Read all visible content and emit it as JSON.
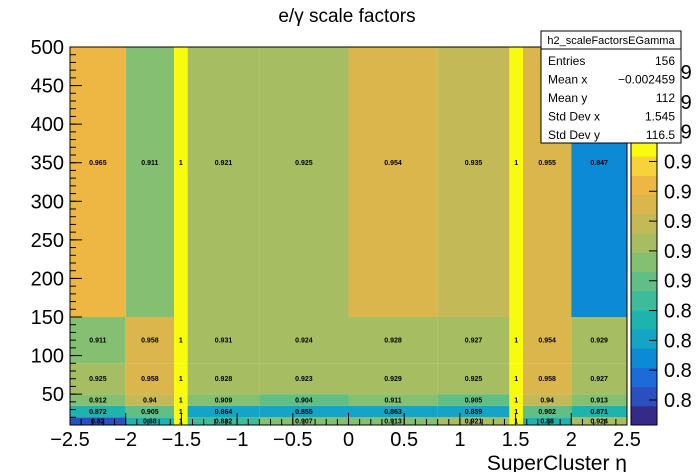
{
  "chart_data": {
    "type": "heatmap",
    "title": "e/γ scale factors",
    "xlabel": "SuperCluster η",
    "ylabel": "",
    "xlim": [
      -2.5,
      2.5
    ],
    "ylim": [
      10,
      500
    ],
    "x_edges": [
      -2.5,
      -2.0,
      -1.566,
      -1.4442,
      -0.8,
      0.0,
      0.8,
      1.4442,
      1.566,
      2.0,
      2.5
    ],
    "y_edges": [
      10,
      20,
      35,
      50,
      90,
      150,
      500
    ],
    "x_ticks": [
      -2.5,
      -2,
      -1.5,
      -1,
      -0.5,
      0,
      0.5,
      1,
      1.5,
      2,
      2.5
    ],
    "x_tick_labels": [
      "−2.5",
      "−2",
      "−1.5",
      "−1",
      "−0.5",
      "0",
      "0.5",
      "1",
      "1.5",
      "2",
      "2.5"
    ],
    "y_ticks": [
      50,
      100,
      150,
      200,
      250,
      300,
      350,
      400,
      450,
      500
    ],
    "y_tick_labels": [
      "50",
      "100",
      "150",
      "200",
      "250",
      "300",
      "350",
      "400",
      "450",
      "500"
    ],
    "z_range": [
      0.8,
      1.0
    ],
    "palette": [
      "#352a87",
      "#2c4fbf",
      "#1d6ad9",
      "#0d8ad6",
      "#14a5c6",
      "#1fb3ae",
      "#3dbb9b",
      "#61bf85",
      "#85bf72",
      "#a7bd62",
      "#c4b957",
      "#dab64d",
      "#eeb743",
      "#f8d23a",
      "#f9fb0e"
    ],
    "z_axis_labels": [
      "0.8",
      "0.8",
      "0.8",
      "0.8",
      "0.9",
      "0.9",
      "0.9",
      "0.9",
      "0.9",
      "0.9",
      "0.9",
      "0.9"
    ],
    "rows": [
      {
        "y": [
          10,
          20
        ],
        "values": [
          0.82,
          0.88,
          1.0,
          0.882,
          0.907,
          0.913,
          0.921,
          1.0,
          0.88,
          0.924
        ],
        "labels": [
          "0.82",
          "0.88",
          "1",
          "0.882",
          "0.907",
          "0.913",
          "0.921",
          "1",
          "0.88",
          "0.924"
        ]
      },
      {
        "y": [
          20,
          35
        ],
        "values": [
          0.872,
          0.905,
          1.0,
          0.864,
          0.855,
          0.863,
          0.859,
          1.0,
          0.902,
          0.871
        ],
        "labels": [
          "0.872",
          "0.905",
          "1",
          "0.864",
          "0.855",
          "0.863",
          "0.859",
          "1",
          "0.902",
          "0.871"
        ]
      },
      {
        "y": [
          35,
          50
        ],
        "values": [
          0.912,
          0.94,
          1.0,
          0.909,
          0.904,
          0.911,
          0.905,
          1.0,
          0.94,
          0.913
        ],
        "labels": [
          "0.912",
          "0.94",
          "1",
          "0.909",
          "0.904",
          "0.911",
          "0.905",
          "1",
          "0.94",
          "0.913"
        ]
      },
      {
        "y": [
          50,
          90
        ],
        "values": [
          0.925,
          0.958,
          1.0,
          0.928,
          0.923,
          0.929,
          0.925,
          1.0,
          0.958,
          0.927
        ],
        "labels": [
          "0.925",
          "0.958",
          "1",
          "0.928",
          "0.923",
          "0.929",
          "0.925",
          "1",
          "0.958",
          "0.927"
        ]
      },
      {
        "y": [
          90,
          150
        ],
        "values": [
          0.911,
          0.958,
          1.0,
          0.931,
          0.924,
          0.928,
          0.927,
          1.0,
          0.954,
          0.929
        ],
        "labels": [
          "0.911",
          "0.958",
          "1",
          "0.931",
          "0.924",
          "0.928",
          "0.927",
          "1",
          "0.954",
          "0.929"
        ]
      },
      {
        "y": [
          150,
          500
        ],
        "values": [
          0.965,
          0.911,
          1.0,
          0.921,
          0.925,
          0.954,
          0.935,
          1.0,
          0.955,
          0.847
        ],
        "labels": [
          "0.965",
          "0.911",
          "1",
          "0.921",
          "0.925",
          "0.954",
          "0.935",
          "1",
          "0.955",
          "0.847"
        ]
      }
    ],
    "stats_box": {
      "name": "h2_scaleFactorsEGamma",
      "entries": [
        {
          "label": "Entries",
          "value": "156"
        },
        {
          "label": "Mean x",
          "value": "−0.002459"
        },
        {
          "label": "Mean y",
          "value": "112"
        },
        {
          "label": "Std Dev x",
          "value": "1.545"
        },
        {
          "label": "Std Dev y",
          "value": "116.5"
        }
      ]
    }
  }
}
